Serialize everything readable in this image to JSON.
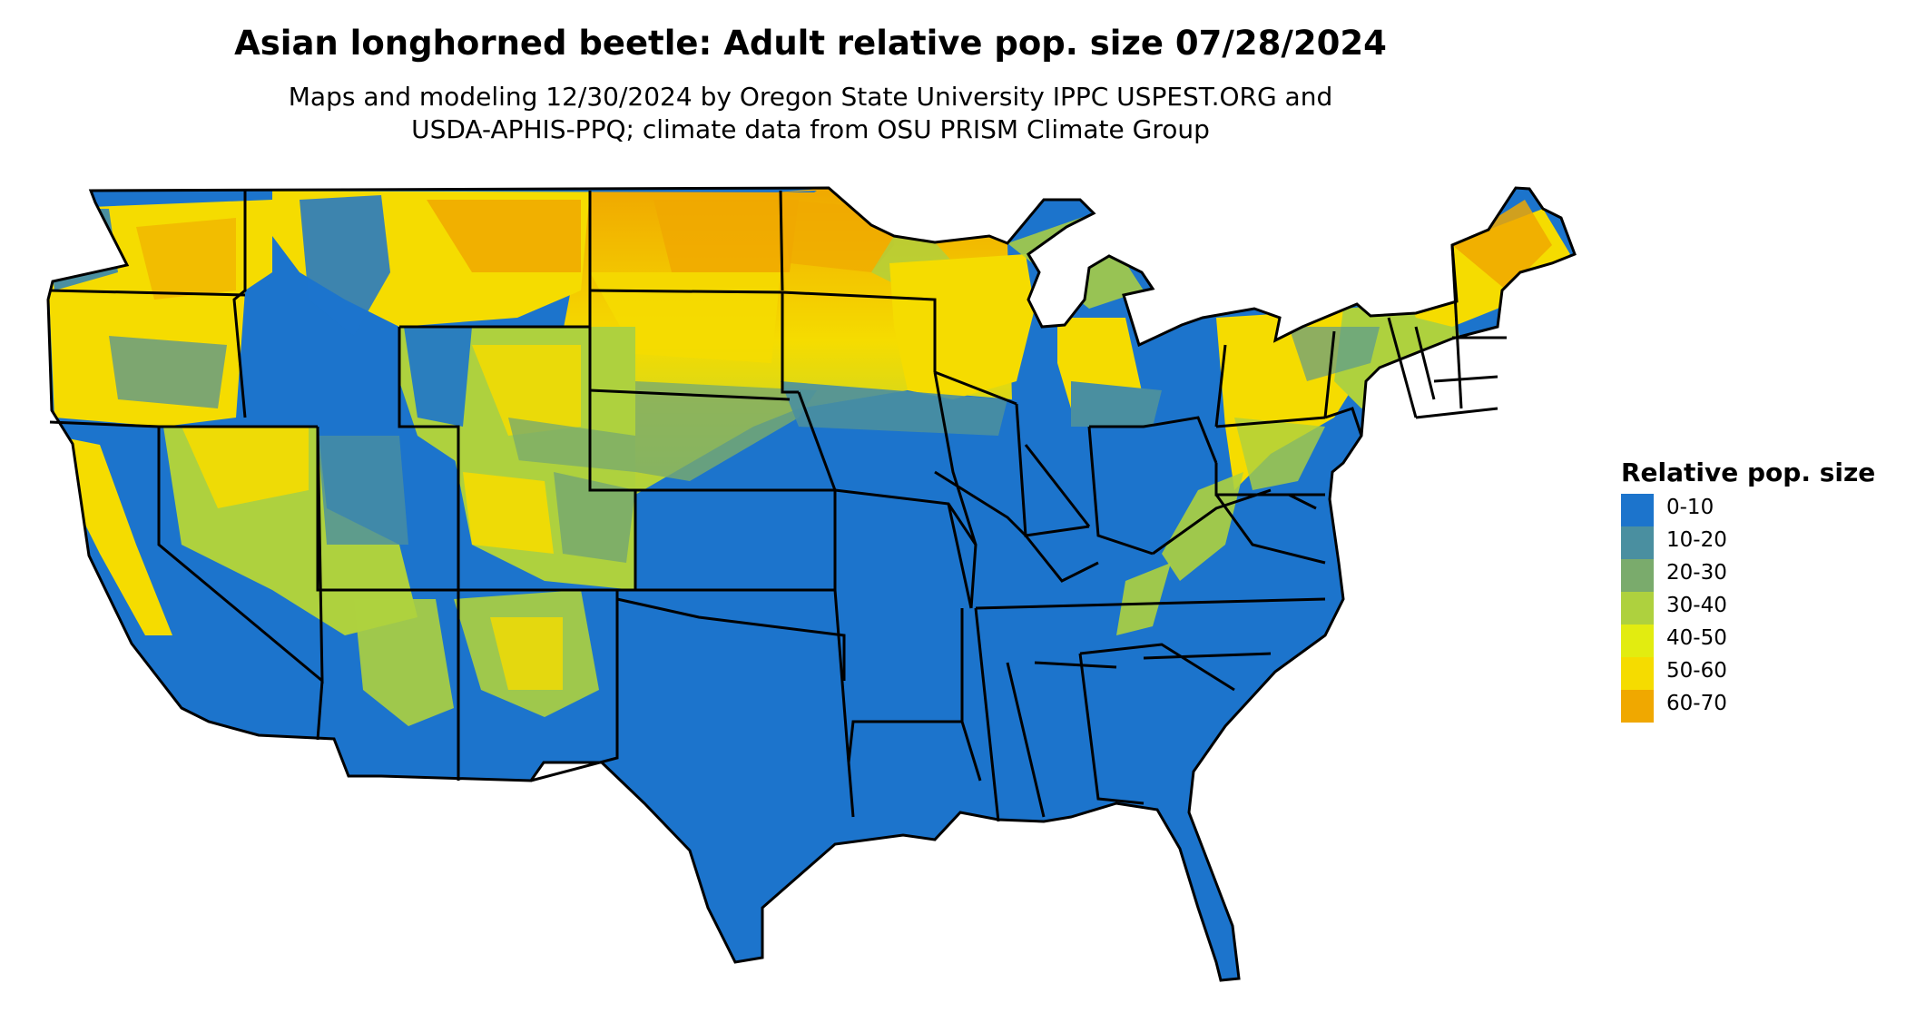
{
  "title": "Asian longhorned beetle: Adult relative pop. size 07/28/2024",
  "subtitle_line1": "Maps and modeling 12/30/2024 by Oregon State University IPPC USPEST.ORG and",
  "subtitle_line2": "USDA-APHIS-PPQ; climate data from OSU PRISM Climate Group",
  "legend": {
    "title": "Relative pop. size",
    "items": [
      {
        "label": "0-10",
        "color": "#1c74cc"
      },
      {
        "label": "10-20",
        "color": "#4a8fa0"
      },
      {
        "label": "20-30",
        "color": "#7aab6c"
      },
      {
        "label": "30-40",
        "color": "#aed13e"
      },
      {
        "label": "40-50",
        "color": "#e2ec10"
      },
      {
        "label": "50-60",
        "color": "#f5dc00"
      },
      {
        "label": "60-70",
        "color": "#f0a800"
      }
    ]
  }
}
